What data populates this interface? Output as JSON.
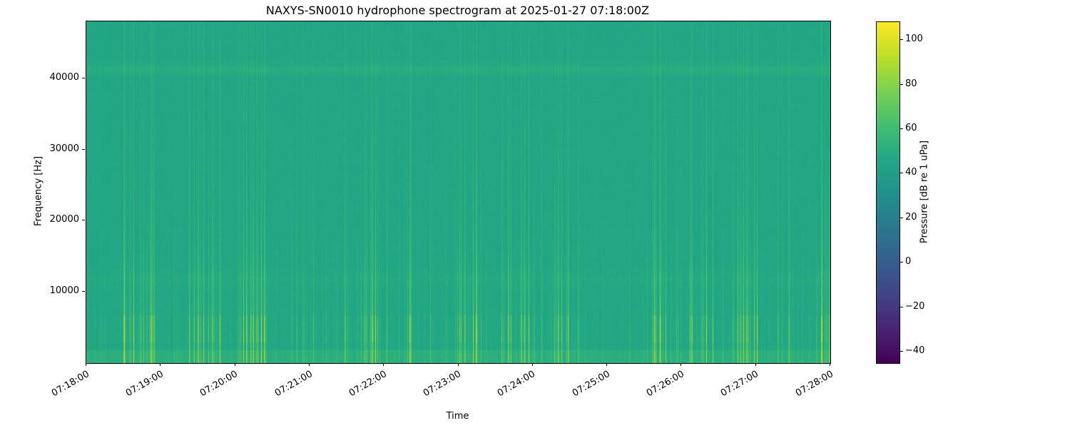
{
  "figure": {
    "title": "NAXYS-SN0010 hydrophone spectrogram at 2025-01-27 07:18:00Z",
    "xlabel": "Time",
    "ylabel": "Frequency [Hz]"
  },
  "chart_data": {
    "type": "heatmap",
    "title": "NAXYS-SN0010 hydrophone spectrogram at 2025-01-27 07:18:00Z",
    "xlabel": "Time",
    "ylabel": "Frequency [Hz]",
    "x_range_s": [
      0,
      600
    ],
    "y_range_hz": [
      0,
      48000
    ],
    "x_ticks": [
      {
        "t_s": 0,
        "label": "07:18:00"
      },
      {
        "t_s": 60,
        "label": "07:19:00"
      },
      {
        "t_s": 120,
        "label": "07:20:00"
      },
      {
        "t_s": 180,
        "label": "07:21:00"
      },
      {
        "t_s": 240,
        "label": "07:22:00"
      },
      {
        "t_s": 300,
        "label": "07:23:00"
      },
      {
        "t_s": 360,
        "label": "07:24:00"
      },
      {
        "t_s": 420,
        "label": "07:25:00"
      },
      {
        "t_s": 480,
        "label": "07:26:00"
      },
      {
        "t_s": 540,
        "label": "07:27:00"
      },
      {
        "t_s": 600,
        "label": "07:28:00"
      }
    ],
    "y_ticks": [
      {
        "hz": 10000,
        "label": "10000"
      },
      {
        "hz": 20000,
        "label": "20000"
      },
      {
        "hz": 30000,
        "label": "30000"
      },
      {
        "hz": 40000,
        "label": "40000"
      }
    ],
    "colorbar": {
      "label": "Pressure [dB re 1 uPa]",
      "colormap": "viridis",
      "vmin": -45,
      "vmax": 108,
      "ticks": [
        {
          "value": 100,
          "label": "100"
        },
        {
          "value": 80,
          "label": "80"
        },
        {
          "value": 60,
          "label": "60"
        },
        {
          "value": 40,
          "label": "40"
        },
        {
          "value": 20,
          "label": "20"
        },
        {
          "value": 0,
          "label": "0"
        },
        {
          "value": -20,
          "label": "−20"
        },
        {
          "value": -40,
          "label": "−40"
        }
      ],
      "stops": [
        "#440154",
        "#482475",
        "#414487",
        "#355f8d",
        "#2a788e",
        "#21918c",
        "#22a884",
        "#44bf70",
        "#7ad151",
        "#bddf26",
        "#fde725"
      ]
    },
    "background_level_db": 45,
    "noise_db": 1.8,
    "tonal_bands": [
      {
        "center_hz": 41300,
        "width_hz": 900,
        "gain_db": 4.5
      },
      {
        "center_hz": 11800,
        "width_hz": 1200,
        "gain_db": 2.0
      }
    ],
    "low_band": {
      "max_hz": 1900,
      "gain_db": 4.5
    },
    "transients_description": "broadband vertical striations, strongest below 20000 Hz, brightest 3000-7000 Hz",
    "transient_clusters": [
      {
        "start_s": 29,
        "end_s": 55,
        "intensity": 1.0
      },
      {
        "start_s": 78,
        "end_s": 109,
        "intensity": 0.9
      },
      {
        "start_s": 121,
        "end_s": 147,
        "intensity": 1.0
      },
      {
        "start_s": 207,
        "end_s": 245,
        "intensity": 0.9
      },
      {
        "start_s": 250,
        "end_s": 265,
        "intensity": 0.7
      },
      {
        "start_s": 299,
        "end_s": 316,
        "intensity": 0.8
      },
      {
        "start_s": 334,
        "end_s": 360,
        "intensity": 0.8
      },
      {
        "start_s": 377,
        "end_s": 391,
        "intensity": 0.6
      },
      {
        "start_s": 452,
        "end_s": 483,
        "intensity": 1.0
      },
      {
        "start_s": 486,
        "end_s": 506,
        "intensity": 0.8
      },
      {
        "start_s": 518,
        "end_s": 541,
        "intensity": 0.9
      },
      {
        "start_s": 558,
        "end_s": 567,
        "intensity": 0.6
      },
      {
        "start_s": 587,
        "end_s": 600,
        "intensity": 1.0
      }
    ],
    "render_seed": 42
  }
}
